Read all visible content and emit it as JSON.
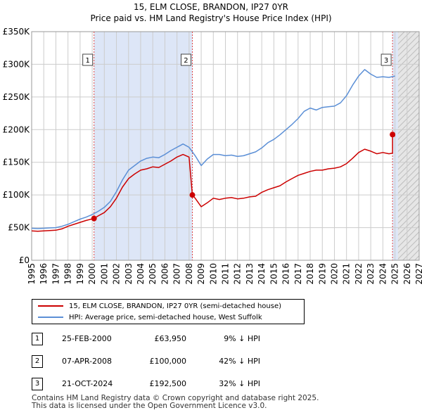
{
  "chart_data": {
    "type": "line",
    "title": "15, ELM CLOSE, BRANDON, IP27 0YR",
    "subtitle": "Price paid vs. HM Land Registry's House Price Index (HPI)",
    "xlabel": "",
    "ylabel": "",
    "xlim": [
      1995,
      2027
    ],
    "ylim": [
      0,
      350000
    ],
    "x_ticks": [
      "1995",
      "1996",
      "1997",
      "1998",
      "1999",
      "2000",
      "2001",
      "2002",
      "2003",
      "2004",
      "2005",
      "2006",
      "2007",
      "2008",
      "2009",
      "2010",
      "2011",
      "2012",
      "2013",
      "2014",
      "2015",
      "2016",
      "2017",
      "2018",
      "2019",
      "2020",
      "2021",
      "2022",
      "2023",
      "2024",
      "2025",
      "2026",
      "2027"
    ],
    "y_ticks": [
      {
        "value": 0,
        "label": "£0"
      },
      {
        "value": 50000,
        "label": "£50K"
      },
      {
        "value": 100000,
        "label": "£100K"
      },
      {
        "value": 150000,
        "label": "£150K"
      },
      {
        "value": 200000,
        "label": "£200K"
      },
      {
        "value": 250000,
        "label": "£250K"
      },
      {
        "value": 300000,
        "label": "£300K"
      },
      {
        "value": 350000,
        "label": "£350K"
      }
    ],
    "grid": true,
    "series": [
      {
        "name": "15, ELM CLOSE, BRANDON, IP27 0YR (semi-detached house)",
        "color": "#cc0000",
        "x": [
          1995.0,
          1995.5,
          1996.0,
          1996.5,
          1997.0,
          1997.5,
          1998.0,
          1998.5,
          1999.0,
          1999.5,
          2000.15,
          2000.5,
          2001.0,
          2001.5,
          2002.0,
          2002.5,
          2003.0,
          2003.5,
          2004.0,
          2004.5,
          2005.0,
          2005.5,
          2006.0,
          2006.5,
          2007.0,
          2007.5,
          2008.0,
          2008.27,
          2008.5,
          2009.0,
          2009.5,
          2010.0,
          2010.5,
          2011.0,
          2011.5,
          2012.0,
          2012.5,
          2013.0,
          2013.5,
          2014.0,
          2014.5,
          2015.0,
          2015.5,
          2016.0,
          2016.5,
          2017.0,
          2017.5,
          2018.0,
          2018.5,
          2019.0,
          2019.5,
          2020.0,
          2020.5,
          2021.0,
          2021.5,
          2022.0,
          2022.5,
          2023.0,
          2023.5,
          2024.0,
          2024.5,
          2024.8,
          2024.8,
          2025.0
        ],
        "values": [
          45000,
          44500,
          45000,
          45500,
          46000,
          48000,
          52000,
          55000,
          58000,
          61000,
          63950,
          68000,
          73000,
          82000,
          95000,
          112000,
          125000,
          132000,
          138000,
          140000,
          143000,
          142000,
          147000,
          152000,
          158000,
          162000,
          158000,
          100000,
          95000,
          82000,
          88000,
          95000,
          93000,
          95000,
          96000,
          94000,
          95000,
          97000,
          98000,
          104000,
          108000,
          111000,
          114000,
          120000,
          125000,
          130000,
          133000,
          136000,
          138000,
          138000,
          140000,
          141000,
          143000,
          148000,
          156000,
          165000,
          170000,
          167000,
          163000,
          165000,
          163000,
          164000,
          192500,
          190000
        ]
      },
      {
        "name": "HPI: Average price, semi-detached house, West Suffolk",
        "color": "#5b8fd6",
        "x": [
          1995.0,
          1995.5,
          1996.0,
          1996.5,
          1997.0,
          1997.5,
          1998.0,
          1998.5,
          1999.0,
          1999.5,
          2000.0,
          2000.5,
          2001.0,
          2001.5,
          2002.0,
          2002.5,
          2003.0,
          2003.5,
          2004.0,
          2004.5,
          2005.0,
          2005.5,
          2006.0,
          2006.5,
          2007.0,
          2007.5,
          2008.0,
          2008.5,
          2009.0,
          2009.5,
          2010.0,
          2010.5,
          2011.0,
          2011.5,
          2012.0,
          2012.5,
          2013.0,
          2013.5,
          2014.0,
          2014.5,
          2015.0,
          2015.5,
          2016.0,
          2016.5,
          2017.0,
          2017.5,
          2018.0,
          2018.5,
          2019.0,
          2019.5,
          2020.0,
          2020.5,
          2021.0,
          2021.5,
          2022.0,
          2022.5,
          2023.0,
          2023.5,
          2024.0,
          2024.5,
          2025.0
        ],
        "values": [
          49000,
          48500,
          49000,
          49500,
          50000,
          52000,
          55000,
          59000,
          63000,
          66000,
          70000,
          75000,
          81000,
          90000,
          105000,
          123000,
          138000,
          145000,
          152000,
          156000,
          158000,
          157000,
          162000,
          168000,
          173000,
          178000,
          173000,
          160000,
          145000,
          155000,
          162000,
          162000,
          160000,
          161000,
          159000,
          160000,
          163000,
          166000,
          172000,
          180000,
          185000,
          192000,
          200000,
          208000,
          217000,
          228000,
          233000,
          230000,
          234000,
          235000,
          236000,
          241000,
          252000,
          268000,
          282000,
          292000,
          285000,
          280000,
          281000,
          280000,
          282000
        ]
      }
    ],
    "sales": [
      {
        "id": "1",
        "x": 2000.15,
        "price": 63950
      },
      {
        "id": "2",
        "x": 2008.27,
        "price": 100000
      },
      {
        "id": "3",
        "x": 2024.8,
        "price": 192500
      }
    ],
    "shaded_regions": [
      {
        "x0": 2000.15,
        "x1": 2008.27,
        "color": "#dde6f7"
      },
      {
        "x0": 2024.8,
        "x1": 2025.25,
        "color": "#dde6f7"
      },
      {
        "x0": 2025.25,
        "x1": 2027,
        "color": "#d8d8d8",
        "hatch": true
      }
    ]
  },
  "legend": {
    "items": [
      {
        "label": "15, ELM CLOSE, BRANDON, IP27 0YR (semi-detached house)",
        "color": "#cc0000"
      },
      {
        "label": "HPI: Average price, semi-detached house, West Suffolk",
        "color": "#5b8fd6"
      }
    ]
  },
  "sales_table": [
    {
      "num": "1",
      "date": "25-FEB-2000",
      "price": "£63,950",
      "hpi": "9% ↓ HPI"
    },
    {
      "num": "2",
      "date": "07-APR-2008",
      "price": "£100,000",
      "hpi": "42% ↓ HPI"
    },
    {
      "num": "3",
      "date": "21-OCT-2024",
      "price": "£192,500",
      "hpi": "32% ↓ HPI"
    }
  ],
  "footer": {
    "line1": "Contains HM Land Registry data © Crown copyright and database right 2025.",
    "line2": "This data is licensed under the Open Government Licence v3.0."
  }
}
